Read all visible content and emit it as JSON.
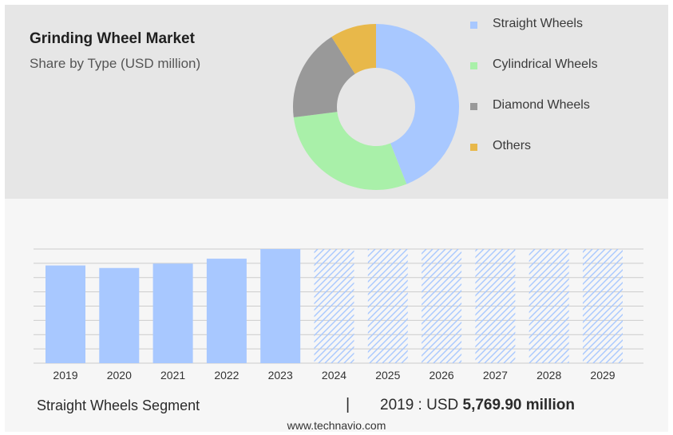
{
  "header": {
    "title": "Grinding Wheel Market",
    "subtitle": "Share by Type (USD million)"
  },
  "chart_data": [
    {
      "type": "pie",
      "title": "Grinding Wheel Market",
      "subtitle": "Share by Type (USD million)",
      "donut": true,
      "legend_position": "right",
      "slices": [
        {
          "name": "Straight Wheels",
          "value": 44,
          "color": "#a8c8ff"
        },
        {
          "name": "Cylindrical Wheels",
          "value": 29,
          "color": "#a9f0a9"
        },
        {
          "name": "Diamond Wheels",
          "value": 18,
          "color": "#999999"
        },
        {
          "name": "Others",
          "value": 9,
          "color": "#e8b84a"
        }
      ]
    },
    {
      "type": "bar",
      "series_name": "Straight Wheels Segment",
      "categories": [
        "2019",
        "2020",
        "2021",
        "2022",
        "2023",
        "2024",
        "2025",
        "2026",
        "2027",
        "2028",
        "2029"
      ],
      "values": [
        5769.9,
        5620,
        5880,
        6170,
        6740,
        6740,
        6740,
        6740,
        6740,
        6740,
        6740
      ],
      "forecast_from_index": 5,
      "ylim": [
        0,
        6740
      ],
      "grid": true,
      "colors": {
        "bar": "#a8c8ff",
        "forecast_hatch": "#a8c8ff",
        "grid": "#cccccc"
      }
    }
  ],
  "footer": {
    "segment_label": "Straight Wheels Segment",
    "divider": "|",
    "value_prefix": "2019 : USD",
    "value_bold": "5,769.90 million"
  },
  "source": "www.technavio.com"
}
